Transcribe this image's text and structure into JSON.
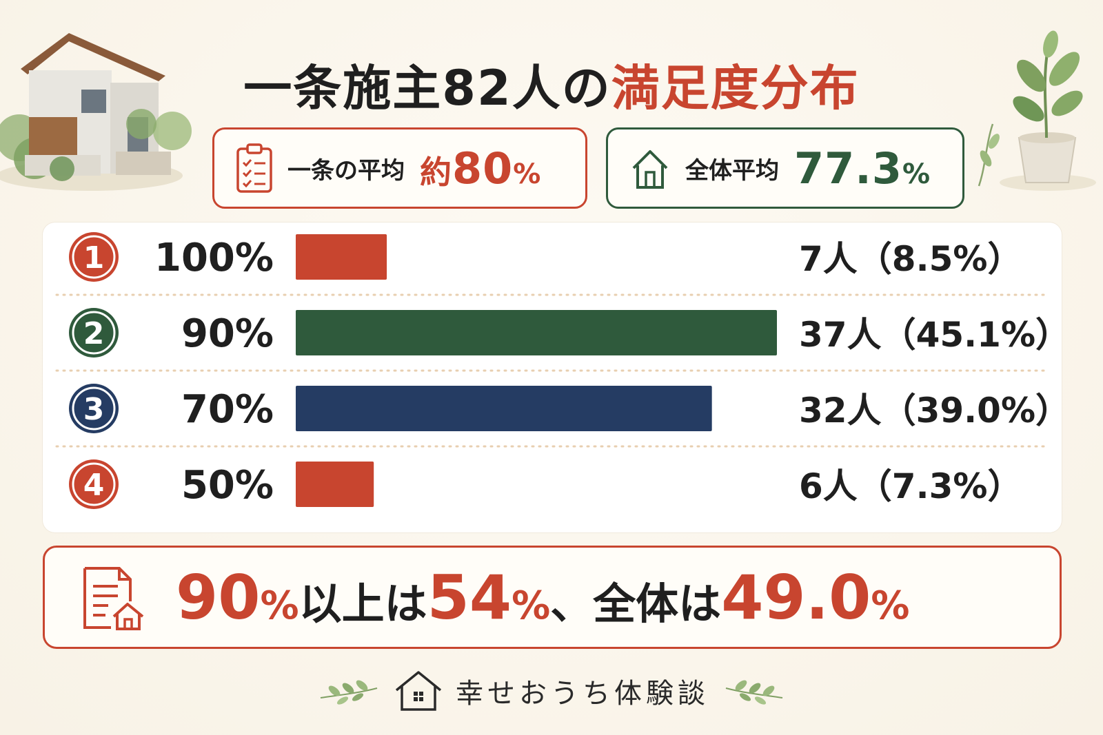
{
  "title": {
    "part1": "一条施主82人の",
    "part2": "満足度分布"
  },
  "averages": {
    "ichijo": {
      "label": "一条の平均",
      "prefix": "約",
      "number": "80",
      "unit": "%"
    },
    "overall": {
      "label": "全体平均",
      "number": "77.3",
      "unit": "%"
    }
  },
  "chart_data": {
    "type": "bar",
    "orientation": "horizontal",
    "categories": [
      "100%",
      "90%",
      "70%",
      "50%"
    ],
    "ranks": [
      "1",
      "2",
      "3",
      "4"
    ],
    "values": [
      7,
      37,
      32,
      6
    ],
    "shares": [
      "8.5%",
      "45.1%",
      "39.0%",
      "7.3%"
    ],
    "count_labels": [
      "7人（8.5%）",
      "37人（45.1%）",
      "32人（39.0%）",
      "6人（7.3%）"
    ],
    "colors": [
      "#c8452f",
      "#2f5a3c",
      "#253c63",
      "#c8452f"
    ],
    "xlim": [
      0,
      37
    ]
  },
  "summary": {
    "value1": "90",
    "unit1": "%",
    "text1": "以上は",
    "value2": "54",
    "unit2": "%",
    "text2": "、全体は",
    "value3": "49.0",
    "unit3": "%"
  },
  "footer": {
    "brand": "幸せおうち体験談"
  },
  "colors": {
    "accent_red": "#c8452f",
    "accent_green": "#2f5a3c",
    "accent_navy": "#253c63",
    "background": "#fbf7ee"
  }
}
